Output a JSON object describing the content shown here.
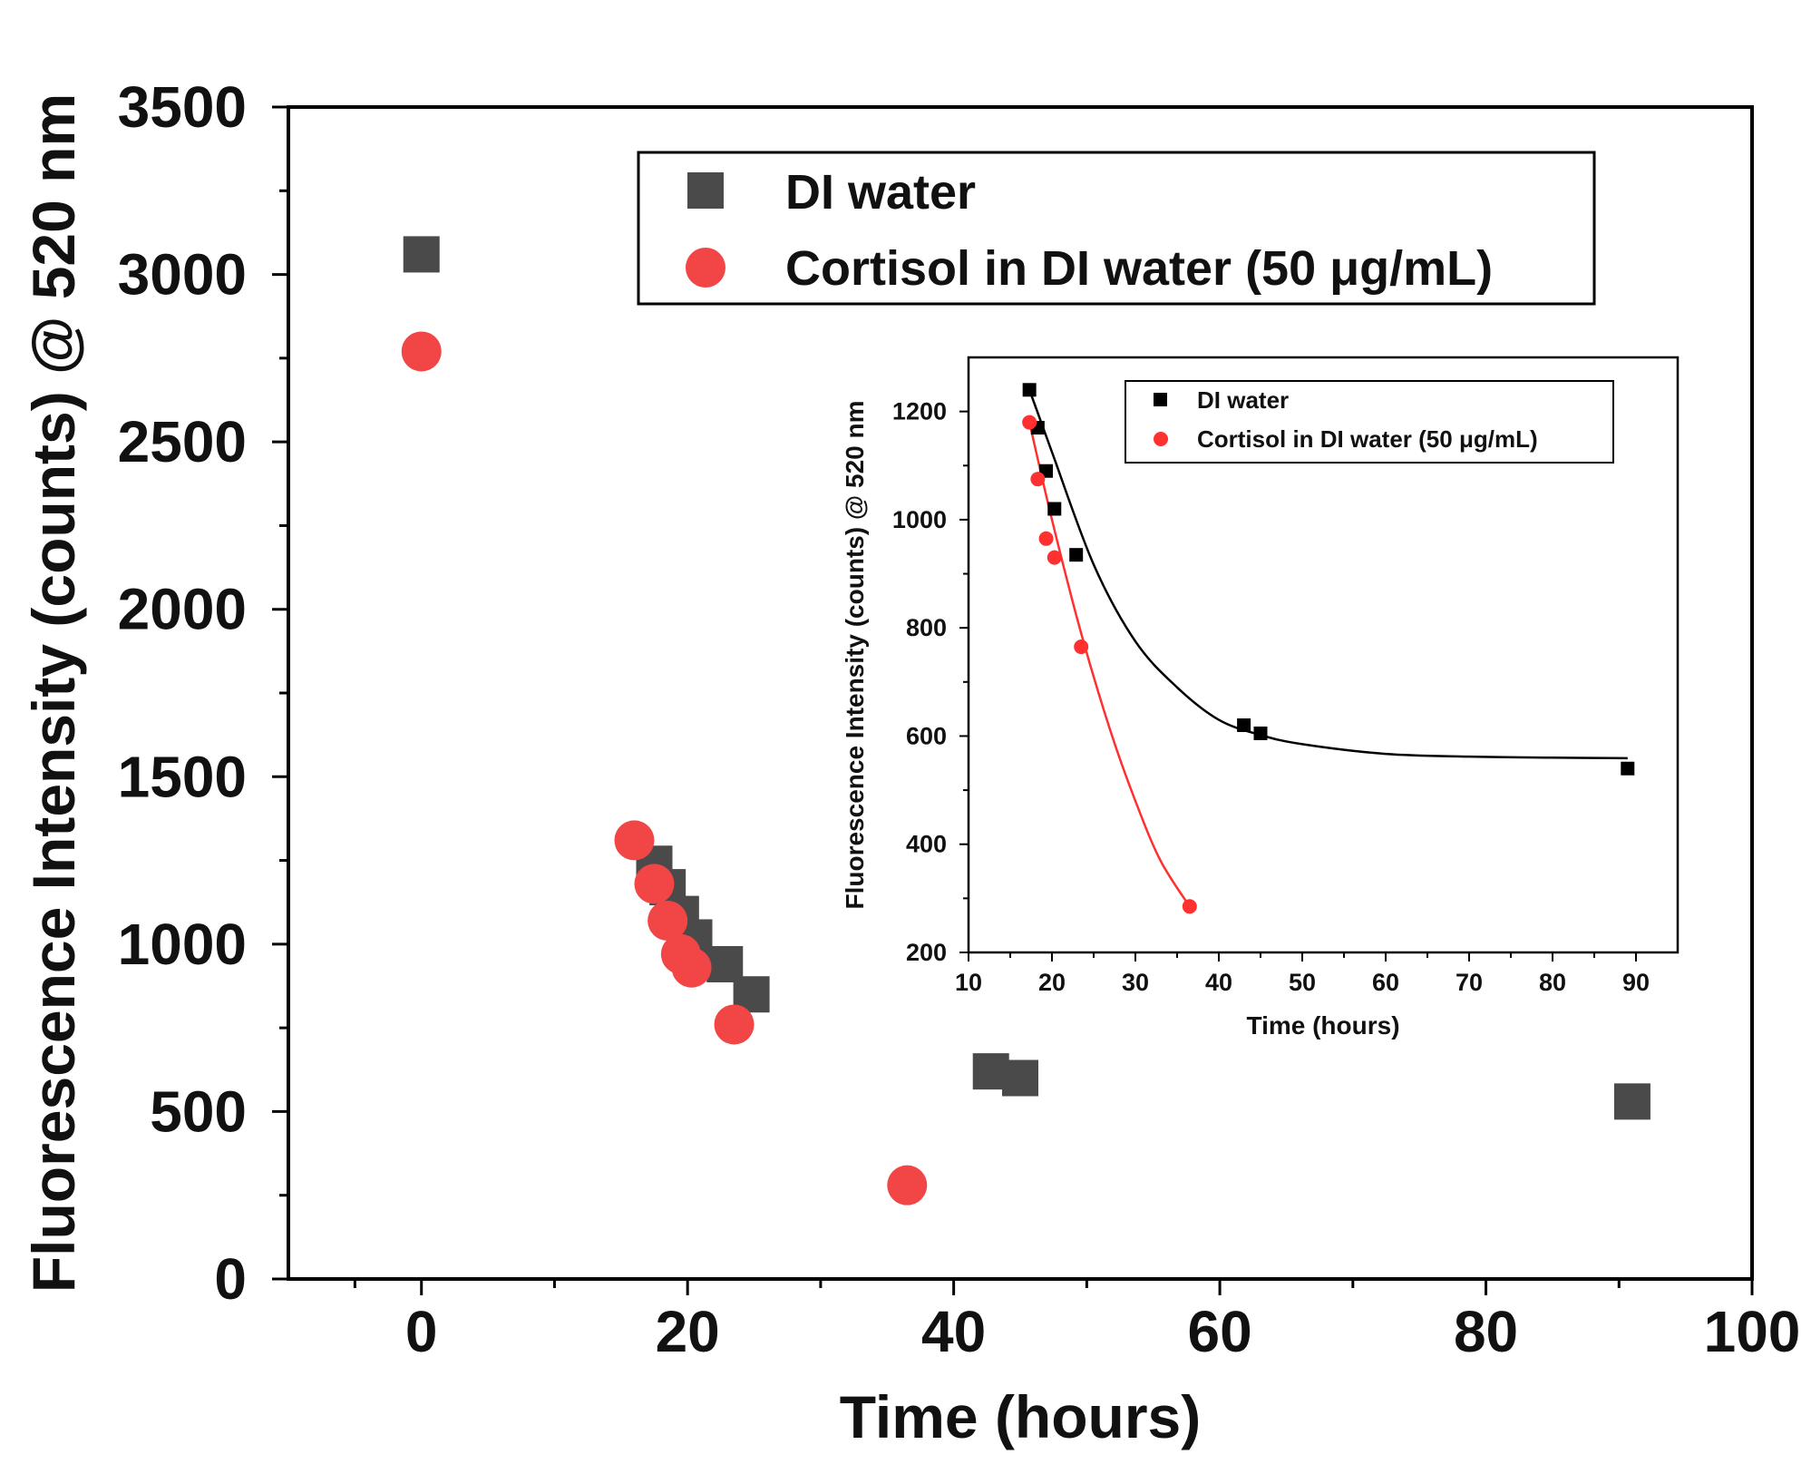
{
  "colors": {
    "di_water_main": "#4a4a4a",
    "cortisol_main": "#f24545",
    "di_water_inset": "#000000",
    "cortisol_inset": "#ff3030",
    "axis": "#000000"
  },
  "chart_data": [
    {
      "type": "scatter",
      "xlabel": "Time (hours)",
      "ylabel": "Fluorescence Intensity (counts) @ 520 nm",
      "xlim": [
        -10,
        100
      ],
      "ylim": [
        0,
        3500
      ],
      "x_ticks": [
        0,
        20,
        40,
        60,
        80,
        100
      ],
      "y_ticks": [
        0,
        500,
        1000,
        1500,
        2000,
        2500,
        3000,
        3500
      ],
      "x_tick_labels": [
        "0",
        "20",
        "40",
        "60",
        "80",
        "100"
      ],
      "y_tick_labels": [
        "0",
        "500",
        "1000",
        "1500",
        "2000",
        "2500",
        "3000",
        "3500"
      ],
      "legend": {
        "position": "top-right",
        "entries": [
          "DI water",
          "Cortisol in DI water (50 μg/mL)"
        ]
      },
      "series": [
        {
          "name": "DI water",
          "marker": "square",
          "x": [
            0,
            17.5,
            18.5,
            19.5,
            20.5,
            22.8,
            24.8,
            42.8,
            45,
            91
          ],
          "y": [
            3060,
            1240,
            1170,
            1090,
            1020,
            940,
            850,
            620,
            600,
            530
          ]
        },
        {
          "name": "Cortisol in DI water (50 μg/mL)",
          "marker": "circle",
          "x": [
            0,
            16,
            17.5,
            18.5,
            19.5,
            20.3,
            23.5,
            36.5
          ],
          "y": [
            2770,
            1310,
            1180,
            1070,
            970,
            930,
            760,
            280
          ]
        }
      ]
    },
    {
      "type": "scatter",
      "inset": true,
      "xlabel": "Time (hours)",
      "ylabel": "Fluorescence Intensity (counts) @ 520 nm",
      "xlim": [
        10,
        95
      ],
      "ylim": [
        200,
        1300
      ],
      "x_ticks": [
        10,
        20,
        30,
        40,
        50,
        60,
        70,
        80,
        90
      ],
      "y_ticks": [
        200,
        400,
        600,
        800,
        1000,
        1200
      ],
      "x_tick_labels": [
        "10",
        "20",
        "30",
        "40",
        "50",
        "60",
        "70",
        "80",
        "90"
      ],
      "y_tick_labels": [
        "200",
        "400",
        "600",
        "800",
        "1000",
        "1200"
      ],
      "legend": {
        "position": "top",
        "entries": [
          "DI water",
          "Cortisol in DI water (50 μg/mL)"
        ]
      },
      "series": [
        {
          "name": "DI water",
          "marker": "square",
          "x": [
            17.3,
            18.3,
            19.3,
            20.3,
            22.9,
            43,
            45,
            89
          ],
          "y": [
            1240,
            1170,
            1090,
            1020,
            935,
            620,
            605,
            540
          ]
        },
        {
          "name": "Cortisol in DI water (50 μg/mL)",
          "marker": "circle",
          "x": [
            17.3,
            18.3,
            19.3,
            20.3,
            23.5,
            36.5
          ],
          "y": [
            1180,
            1075,
            965,
            930,
            765,
            285
          ]
        }
      ],
      "fits": [
        {
          "name": "DI water fit",
          "model": "exponential decay",
          "x": [
            17.3,
            20,
            25,
            30,
            35,
            40,
            45,
            50,
            60,
            70,
            80,
            89
          ],
          "y": [
            1240,
            1125,
            917,
            775,
            690,
            630,
            602,
            585,
            567,
            562,
            560,
            559
          ]
        },
        {
          "name": "Cortisol fit",
          "model": "decay",
          "x": [
            17.3,
            20,
            23.5,
            27,
            30,
            33,
            36.5
          ],
          "y": [
            1180,
            1000,
            790,
            610,
            480,
            370,
            285
          ]
        }
      ]
    }
  ]
}
